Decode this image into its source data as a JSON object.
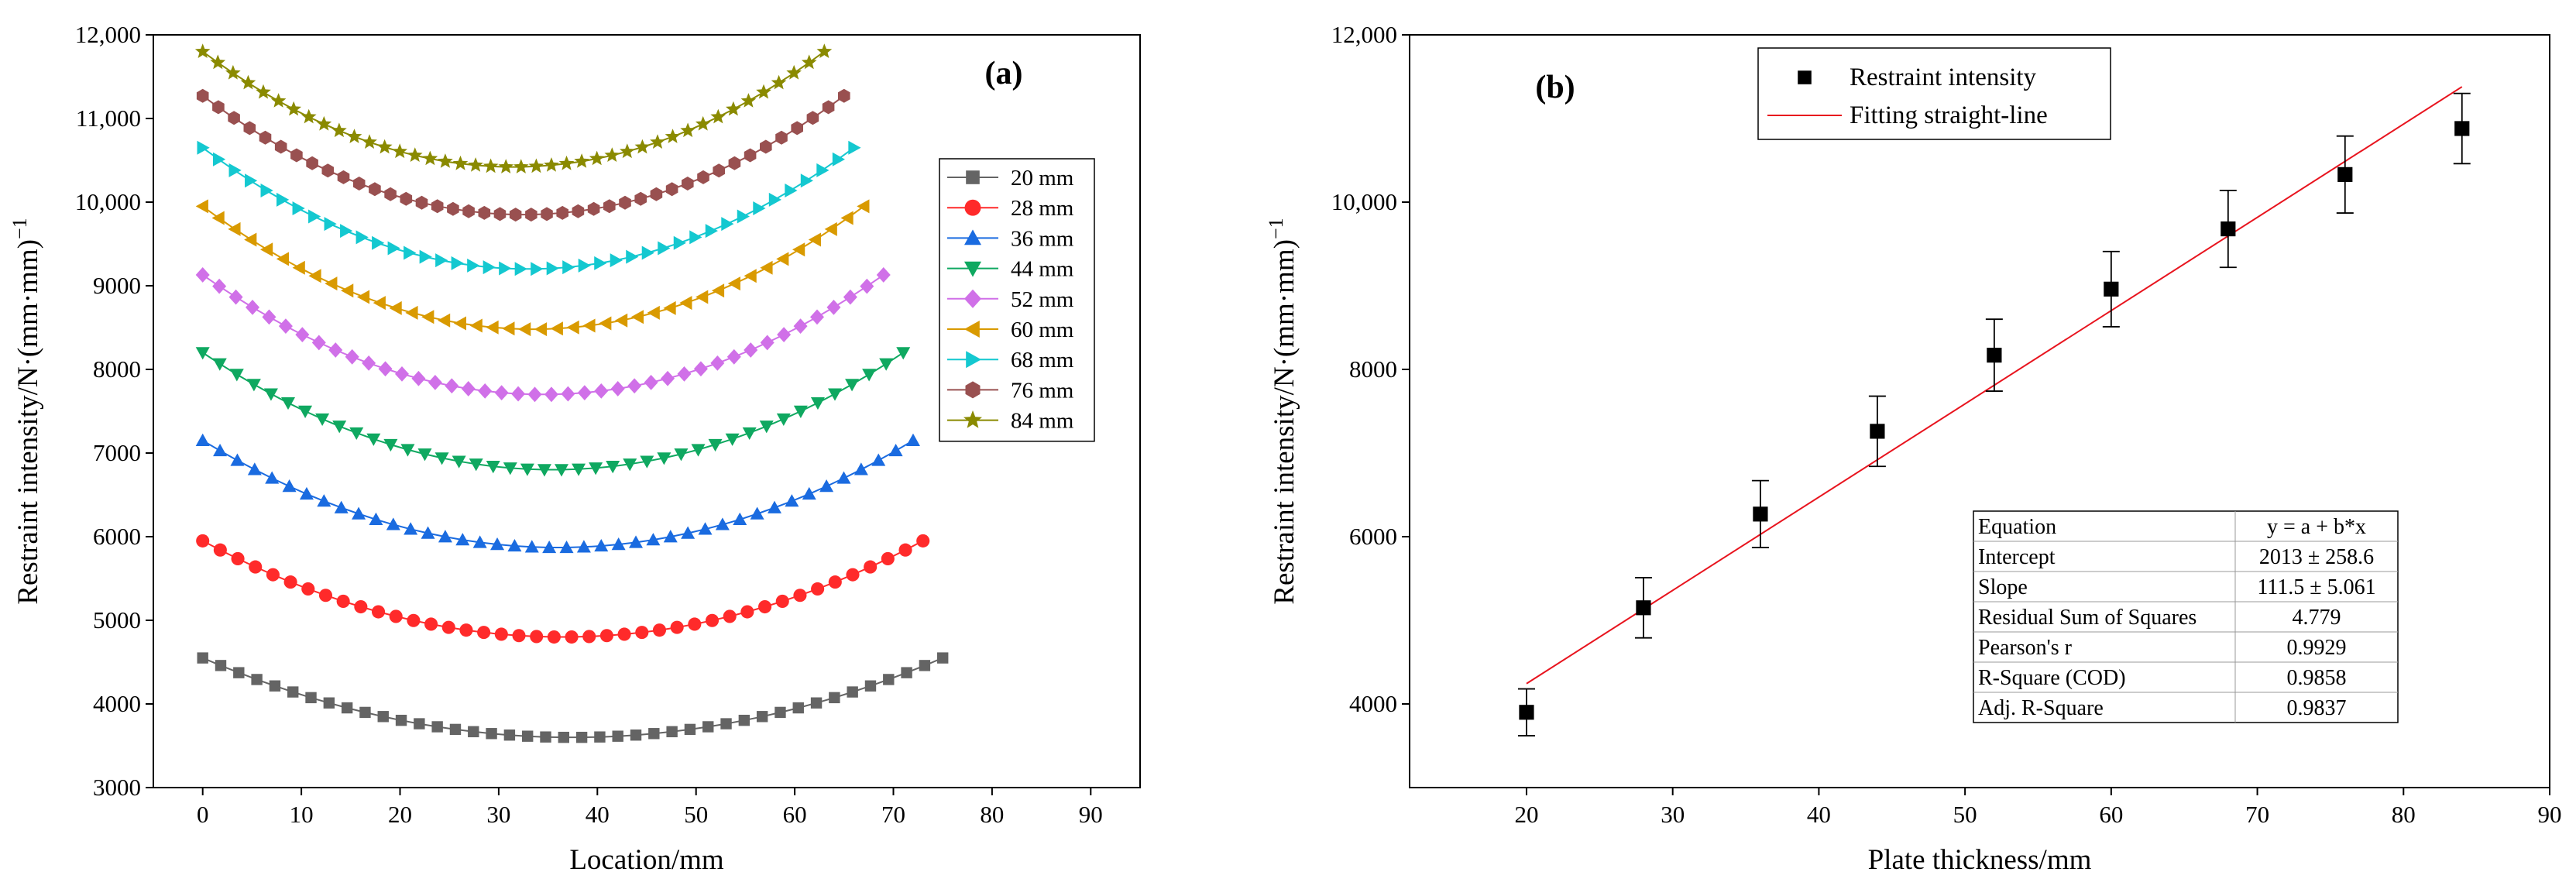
{
  "chart_data": [
    {
      "type": "line",
      "panel_label": "(a)",
      "xlabel": "Location/mm",
      "ylabel": "Restraint intensity/N·(mm·mm)",
      "ylabel_superscript": "−1",
      "xlim": [
        -5,
        95
      ],
      "ylim": [
        3000,
        12000
      ],
      "x_ticks": [
        0,
        10,
        20,
        30,
        40,
        50,
        60,
        70,
        80,
        90
      ],
      "x_tick_labels": [
        "0",
        "10",
        "20",
        "30",
        "40",
        "50",
        "60",
        "70",
        "80",
        "90"
      ],
      "y_ticks": [
        3000,
        4000,
        5000,
        6000,
        7000,
        8000,
        9000,
        10000,
        11000,
        12000
      ],
      "y_tick_labels": [
        "3000",
        "4000",
        "5000",
        "6000",
        "7000",
        "8000",
        "9000",
        "10,000",
        "11,000",
        "12,000"
      ],
      "legend_position": "right",
      "series": [
        {
          "name": "20 mm",
          "color": "#646464",
          "marker": "square",
          "x_end": 75,
          "edge": 4550,
          "min": 3600
        },
        {
          "name": "28 mm",
          "color": "#ff2a2a",
          "marker": "circle",
          "x_end": 73,
          "edge": 5950,
          "min": 4800
        },
        {
          "name": "36 mm",
          "color": "#1a6be0",
          "marker": "triangle-up",
          "x_end": 72,
          "edge": 7150,
          "min": 5870
        },
        {
          "name": "44 mm",
          "color": "#0fa860",
          "marker": "triangle-down",
          "x_end": 71,
          "edge": 8200,
          "min": 6800
        },
        {
          "name": "52 mm",
          "color": "#d070e8",
          "marker": "diamond",
          "x_end": 69,
          "edge": 9130,
          "min": 7700
        },
        {
          "name": "60 mm",
          "color": "#d99a00",
          "marker": "triangle-left",
          "x_end": 67,
          "edge": 9950,
          "min": 8480
        },
        {
          "name": "68 mm",
          "color": "#14c8d0",
          "marker": "triangle-right",
          "x_end": 66,
          "edge": 10650,
          "min": 9200
        },
        {
          "name": "76 mm",
          "color": "#995050",
          "marker": "hexagon",
          "x_end": 65,
          "edge": 11270,
          "min": 9850
        },
        {
          "name": "84 mm",
          "color": "#8a8a00",
          "marker": "star",
          "x_end": 63,
          "edge": 11800,
          "min": 10420
        }
      ]
    },
    {
      "type": "scatter",
      "panel_label": "(b)",
      "xlabel": "Plate thickness/mm",
      "ylabel": "Restraint intensity/N·(mm·mm)",
      "ylabel_superscript": "−1",
      "xlim": [
        12,
        90
      ],
      "ylim": [
        3000,
        12000
      ],
      "x_ticks": [
        20,
        30,
        40,
        50,
        60,
        70,
        80,
        90
      ],
      "x_tick_labels": [
        "20",
        "30",
        "40",
        "50",
        "60",
        "70",
        "80",
        "90"
      ],
      "y_ticks": [
        4000,
        6000,
        8000,
        10000,
        12000
      ],
      "y_tick_labels": [
        "4000",
        "6000",
        "8000",
        "10,000",
        "12,000"
      ],
      "legend_position": "top-center",
      "series": [
        {
          "name": "Restraint intensity",
          "color": "#000000",
          "marker": "square",
          "x": [
            20,
            28,
            36,
            44,
            52,
            60,
            68,
            76,
            84
          ],
          "y": [
            3900,
            5150,
            6270,
            7260,
            8170,
            8960,
            9680,
            10330,
            10880
          ],
          "err": [
            280,
            360,
            400,
            420,
            430,
            450,
            460,
            460,
            420
          ]
        },
        {
          "name": "Fitting straight-line",
          "color": "#e8141e",
          "type": "line",
          "intercept": 2013,
          "slope": 111.5,
          "x_range": [
            20,
            84
          ]
        }
      ],
      "fit_table": [
        [
          "Equation",
          "y = a + b*x"
        ],
        [
          "Intercept",
          "2013 ± 258.6"
        ],
        [
          "Slope",
          "111.5 ± 5.061"
        ],
        [
          "Residual Sum of Squares",
          "4.779"
        ],
        [
          "Pearson's r",
          "0.9929"
        ],
        [
          "R-Square (COD)",
          "0.9858"
        ],
        [
          "Adj. R-Square",
          "0.9837"
        ]
      ]
    }
  ]
}
